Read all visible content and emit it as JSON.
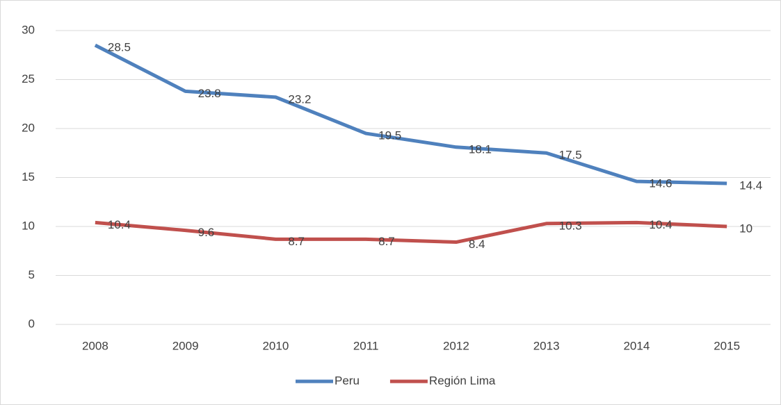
{
  "chart_data": {
    "type": "line",
    "categories": [
      "2008",
      "2009",
      "2010",
      "2011",
      "2012",
      "2013",
      "2014",
      "2015"
    ],
    "series": [
      {
        "name": "Peru",
        "color": "#4f81bd",
        "values": [
          28.5,
          23.8,
          23.2,
          19.5,
          18.1,
          17.5,
          14.6,
          14.4
        ]
      },
      {
        "name": "Región Lima",
        "color": "#c0504d",
        "values": [
          10.4,
          9.6,
          8.7,
          8.7,
          8.4,
          10.3,
          10.4,
          10
        ]
      }
    ],
    "ylim": [
      0,
      30
    ],
    "yticks": [
      0,
      5,
      10,
      15,
      20,
      25,
      30
    ],
    "grid": true,
    "legend": "bottom"
  }
}
